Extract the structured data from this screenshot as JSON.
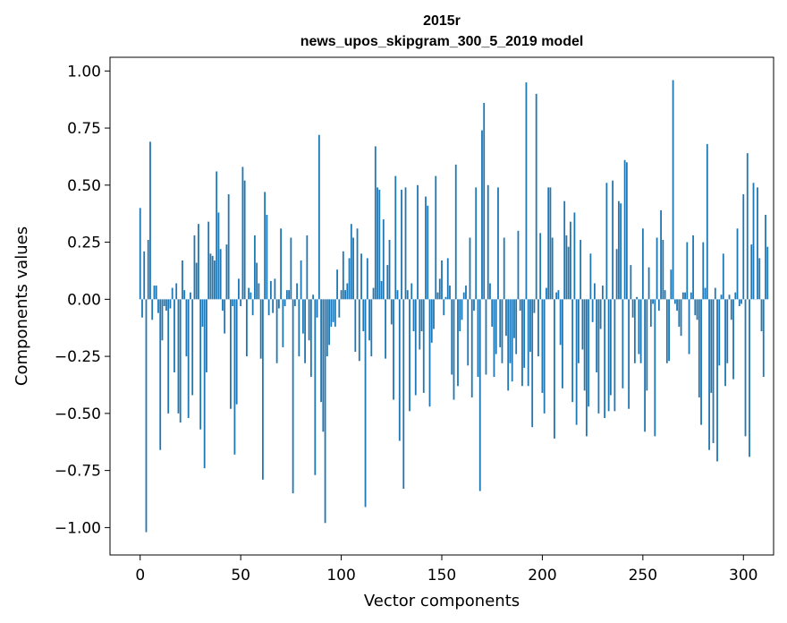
{
  "chart_data": {
    "type": "bar",
    "title": "2015r",
    "subtitle": "news_upos_skipgram_300_5_2019 model",
    "xlabel": "Vector components",
    "ylabel": "Components values",
    "xlim": [
      -15,
      315
    ],
    "ylim": [
      -1.12,
      1.06
    ],
    "xticks": [
      0,
      50,
      100,
      150,
      200,
      250,
      300
    ],
    "xtick_labels": [
      "0",
      "50",
      "100",
      "150",
      "200",
      "250",
      "300"
    ],
    "yticks": [
      1.0,
      0.75,
      0.5,
      0.25,
      0.0,
      -0.25,
      -0.5,
      -0.75,
      -1.0
    ],
    "ytick_labels": [
      "1.00",
      "0.75",
      "0.50",
      "0.25",
      "0.00",
      "−0.25",
      "−0.50",
      "−0.75",
      "−1.00"
    ],
    "bar_color": "#1f77b4",
    "grid": false,
    "values": [
      0.4,
      -0.08,
      0.21,
      -1.02,
      0.26,
      0.69,
      -0.09,
      0.06,
      0.06,
      -0.06,
      -0.66,
      -0.18,
      -0.03,
      -0.05,
      -0.5,
      -0.04,
      0.05,
      -0.32,
      0.07,
      -0.5,
      -0.54,
      0.17,
      0.04,
      -0.25,
      -0.52,
      0.03,
      -0.42,
      0.28,
      0.16,
      0.33,
      -0.57,
      -0.12,
      -0.74,
      -0.32,
      0.34,
      0.2,
      0.19,
      0.17,
      0.56,
      0.38,
      0.22,
      -0.05,
      -0.15,
      0.24,
      0.46,
      -0.48,
      -0.03,
      -0.68,
      -0.46,
      0.09,
      -0.03,
      0.58,
      0.52,
      -0.25,
      0.05,
      0.03,
      -0.07,
      0.28,
      0.16,
      0.07,
      -0.26,
      -0.79,
      0.47,
      0.37,
      -0.07,
      0.08,
      -0.06,
      0.09,
      -0.28,
      -0.04,
      0.31,
      -0.21,
      -0.03,
      0.04,
      0.04,
      0.27,
      -0.85,
      -0.03,
      0.07,
      -0.25,
      0.17,
      -0.15,
      -0.28,
      0.28,
      -0.18,
      -0.34,
      0.02,
      -0.77,
      -0.08,
      0.72,
      -0.45,
      -0.58,
      -0.98,
      -0.25,
      -0.2,
      -0.12,
      -0.1,
      -0.12,
      0.13,
      -0.08,
      0.04,
      0.21,
      0.04,
      0.07,
      0.18,
      0.33,
      0.27,
      -0.23,
      0.31,
      -0.27,
      0.2,
      -0.14,
      -0.91,
      0.18,
      -0.18,
      -0.25,
      0.05,
      0.67,
      0.49,
      0.48,
      0.08,
      0.35,
      -0.26,
      0.15,
      0.26,
      -0.11,
      -0.44,
      0.54,
      0.04,
      -0.62,
      0.48,
      -0.83,
      0.49,
      0.04,
      -0.49,
      0.07,
      -0.14,
      -0.42,
      0.5,
      -0.22,
      -0.14,
      -0.41,
      0.45,
      0.41,
      -0.47,
      -0.19,
      -0.13,
      0.54,
      0.03,
      0.09,
      0.17,
      -0.07,
      0.01,
      0.18,
      0.06,
      -0.33,
      -0.44,
      0.59,
      -0.38,
      -0.14,
      -0.09,
      0.03,
      0.06,
      -0.29,
      0.27,
      -0.43,
      -0.05,
      0.49,
      -0.34,
      -0.84,
      0.74,
      0.86,
      -0.33,
      0.5,
      0.07,
      -0.12,
      -0.34,
      -0.24,
      0.49,
      -0.21,
      -0.28,
      0.27,
      -0.16,
      -0.4,
      -0.28,
      -0.36,
      -0.17,
      -0.24,
      0.3,
      -0.05,
      -0.38,
      -0.3,
      0.95,
      -0.38,
      -0.23,
      -0.56,
      -0.06,
      0.9,
      -0.25,
      0.29,
      -0.41,
      -0.5,
      0.05,
      0.49,
      0.49,
      0.27,
      -0.61,
      0.03,
      0.04,
      -0.2,
      -0.39,
      0.43,
      0.28,
      0.23,
      0.34,
      -0.45,
      0.38,
      -0.55,
      -0.28,
      0.26,
      -0.22,
      -0.4,
      -0.6,
      -0.47,
      0.2,
      -0.1,
      0.07,
      -0.32,
      -0.5,
      -0.13,
      0.06,
      -0.52,
      0.51,
      -0.49,
      -0.42,
      0.52,
      -0.49,
      0.22,
      0.43,
      0.42,
      -0.39,
      0.61,
      0.6,
      -0.48,
      0.15,
      -0.08,
      -0.28,
      0.01,
      -0.24,
      -0.28,
      0.31,
      -0.58,
      -0.4,
      0.14,
      -0.12,
      -0.02,
      -0.6,
      0.27,
      -0.05,
      0.39,
      0.26,
      0.04,
      -0.28,
      -0.27,
      0.13,
      0.96,
      -0.02,
      -0.05,
      -0.12,
      -0.16,
      0.03,
      0.03,
      0.25,
      -0.24,
      0.03,
      0.28,
      -0.07,
      -0.09,
      -0.43,
      -0.55,
      0.25,
      0.05,
      0.68,
      -0.66,
      -0.41,
      -0.63,
      0.05,
      -0.71,
      -0.29,
      0.02,
      0.2,
      -0.38,
      -0.28,
      0.02,
      -0.09,
      -0.35,
      0.03,
      0.31,
      -0.03,
      -0.02,
      0.46,
      -0.6,
      0.64,
      -0.69,
      0.24,
      0.51,
      0.0,
      0.49,
      0.18,
      -0.14,
      -0.34,
      0.37,
      0.23
    ]
  }
}
